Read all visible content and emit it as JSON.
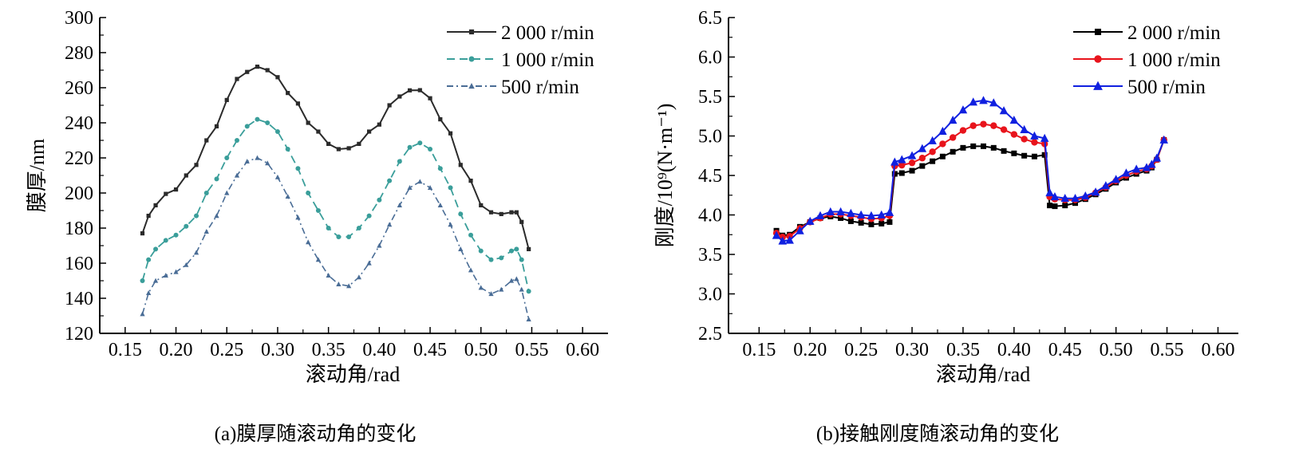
{
  "chart_data": [
    {
      "type": "line",
      "caption": "(a)膜厚随滚动角的变化",
      "xlabel": "滚动角/rad",
      "ylabel": "膜厚/nm",
      "xlim": [
        0.125,
        0.625
      ],
      "ylim": [
        120,
        300
      ],
      "xticks": [
        "0.15",
        "0.20",
        "0.25",
        "0.30",
        "0.35",
        "0.40",
        "0.45",
        "0.50",
        "0.55",
        "0.60"
      ],
      "yticks": [
        "120",
        "140",
        "160",
        "180",
        "200",
        "220",
        "240",
        "260",
        "280",
        "300"
      ],
      "legend": "top-right",
      "grid": false,
      "x": [
        0.167,
        0.173,
        0.18,
        0.19,
        0.2,
        0.21,
        0.22,
        0.23,
        0.24,
        0.25,
        0.26,
        0.27,
        0.28,
        0.29,
        0.3,
        0.31,
        0.32,
        0.33,
        0.34,
        0.35,
        0.36,
        0.37,
        0.38,
        0.39,
        0.4,
        0.41,
        0.42,
        0.43,
        0.44,
        0.45,
        0.46,
        0.47,
        0.48,
        0.49,
        0.5,
        0.51,
        0.52,
        0.53,
        0.535,
        0.54,
        0.547
      ],
      "series": [
        {
          "name": "2 000 r/min",
          "color": "#2b2b2b",
          "marker": "square",
          "dash": "",
          "values": [
            177,
            187,
            193,
            199.5,
            202,
            210,
            216,
            230,
            238,
            253,
            265,
            269,
            272,
            270,
            266,
            257,
            251,
            240,
            235,
            228,
            225,
            225.5,
            228,
            235,
            239,
            250,
            255,
            258.5,
            258.6,
            254,
            242,
            234,
            216,
            207,
            193,
            189,
            188,
            189,
            189,
            183.5,
            168
          ]
        },
        {
          "name": "1 000 r/min",
          "color": "#3a9e9a",
          "marker": "circle",
          "dash": "10,6",
          "values": [
            150,
            162,
            168,
            173,
            176,
            181,
            187,
            200,
            208,
            220,
            230,
            238,
            242,
            240,
            235,
            225,
            214,
            200,
            190,
            180,
            175,
            175,
            180,
            187,
            196,
            207,
            218,
            226,
            228.5,
            225,
            214,
            203,
            188,
            176,
            167,
            162,
            163,
            167,
            168,
            162,
            144
          ]
        },
        {
          "name": "500 r/min",
          "color": "#4a6d96",
          "marker": "triangle",
          "dash": "8,4,2,4",
          "values": [
            131,
            143,
            150,
            153,
            155,
            159,
            166,
            178,
            187,
            200,
            210,
            218,
            220,
            217,
            209,
            198,
            186,
            172,
            162,
            153,
            148,
            147,
            152,
            160,
            170,
            182,
            193,
            203,
            206.5,
            203,
            193,
            182,
            168,
            156,
            146,
            142.5,
            145,
            150,
            151,
            145,
            128
          ]
        }
      ]
    },
    {
      "type": "line",
      "caption": "(b)接触刚度随滚动角的变化",
      "xlabel": "滚动角/rad",
      "ylabel": "刚度/10⁹(N·m⁻¹)",
      "xlim": [
        0.12,
        0.62
      ],
      "ylim": [
        2.5,
        6.5
      ],
      "xticks": [
        "0.15",
        "0.20",
        "0.25",
        "0.30",
        "0.35",
        "0.40",
        "0.45",
        "0.50",
        "0.55",
        "0.60"
      ],
      "yticks": [
        "2.5",
        "3.0",
        "3.5",
        "4.0",
        "4.5",
        "5.0",
        "5.5",
        "6.0",
        "6.5"
      ],
      "legend": "top-right",
      "grid": false,
      "x": [
        0.167,
        0.173,
        0.18,
        0.19,
        0.2,
        0.21,
        0.22,
        0.23,
        0.24,
        0.25,
        0.26,
        0.27,
        0.278,
        0.283,
        0.29,
        0.3,
        0.31,
        0.32,
        0.33,
        0.34,
        0.35,
        0.36,
        0.37,
        0.38,
        0.39,
        0.4,
        0.41,
        0.42,
        0.43,
        0.435,
        0.44,
        0.45,
        0.46,
        0.47,
        0.48,
        0.49,
        0.5,
        0.51,
        0.52,
        0.53,
        0.535,
        0.54,
        0.547
      ],
      "series": [
        {
          "name": "2 000 r/min",
          "color": "#000000",
          "marker": "square",
          "dash": "",
          "values": [
            3.8,
            3.74,
            3.75,
            3.85,
            3.91,
            3.96,
            3.98,
            3.96,
            3.92,
            3.9,
            3.88,
            3.89,
            3.91,
            4.52,
            4.53,
            4.56,
            4.62,
            4.68,
            4.74,
            4.8,
            4.85,
            4.87,
            4.87,
            4.85,
            4.81,
            4.78,
            4.75,
            4.74,
            4.76,
            4.12,
            4.11,
            4.12,
            4.15,
            4.2,
            4.26,
            4.33,
            4.41,
            4.47,
            4.52,
            4.56,
            4.6,
            4.7,
            4.95
          ]
        },
        {
          "name": "1 000 r/min",
          "color": "#e8141c",
          "marker": "circle",
          "dash": "",
          "values": [
            3.77,
            3.72,
            3.73,
            3.83,
            3.91,
            3.96,
            4.01,
            4.01,
            3.99,
            3.97,
            3.95,
            3.96,
            3.99,
            4.62,
            4.63,
            4.66,
            4.72,
            4.8,
            4.9,
            4.98,
            5.07,
            5.13,
            5.15,
            5.13,
            5.08,
            5.02,
            4.96,
            4.92,
            4.9,
            4.23,
            4.2,
            4.19,
            4.19,
            4.22,
            4.28,
            4.35,
            4.43,
            4.5,
            4.55,
            4.58,
            4.62,
            4.7,
            4.95
          ]
        },
        {
          "name": "500 r/min",
          "color": "#1020e0",
          "marker": "triangle",
          "dash": "",
          "values": [
            3.74,
            3.67,
            3.68,
            3.8,
            3.92,
            3.99,
            4.04,
            4.04,
            4.02,
            4.0,
            3.99,
            4.0,
            4.03,
            4.67,
            4.7,
            4.75,
            4.84,
            4.94,
            5.06,
            5.2,
            5.33,
            5.43,
            5.45,
            5.42,
            5.32,
            5.2,
            5.08,
            5.0,
            4.97,
            4.28,
            4.23,
            4.21,
            4.21,
            4.24,
            4.29,
            4.37,
            4.45,
            4.53,
            4.58,
            4.6,
            4.64,
            4.72,
            4.95
          ]
        }
      ]
    }
  ]
}
